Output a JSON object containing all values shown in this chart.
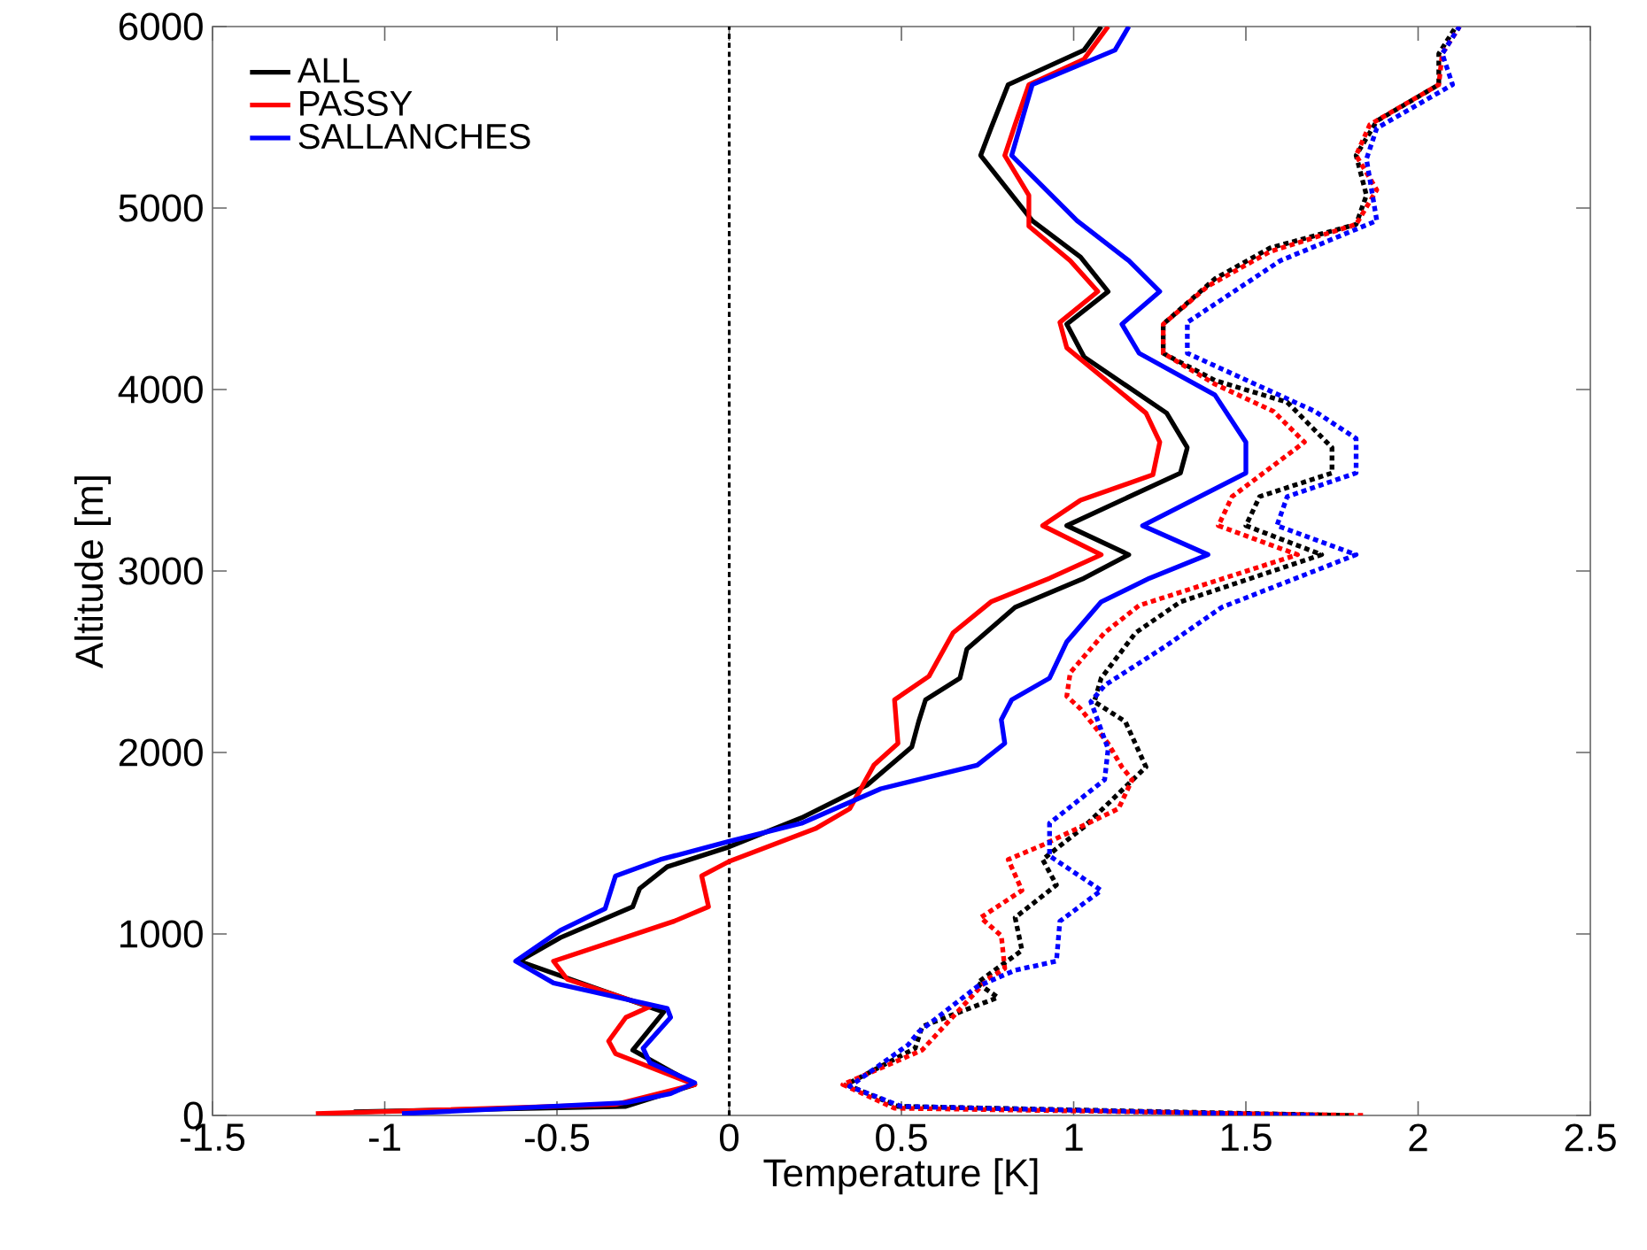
{
  "chart_data": {
    "type": "line",
    "xlabel": "Temperature [K]",
    "ylabel": "Altitude [m]",
    "xlim": [
      -1.5,
      2.5
    ],
    "ylim": [
      0,
      6000
    ],
    "xticks": [
      -1.5,
      -1,
      -0.5,
      0,
      0.5,
      1,
      1.5,
      2,
      2.5
    ],
    "yticks": [
      0,
      1000,
      2000,
      3000,
      4000,
      5000,
      6000
    ],
    "legend": "top left",
    "series": [
      {
        "name": "ALL",
        "color": "#000000",
        "line_style": "solid",
        "x": [
          -1.09,
          -0.3,
          -0.1,
          -0.28,
          -0.19,
          -0.61,
          -0.49,
          -0.28,
          -0.26,
          -0.18,
          0,
          0.21,
          0.4,
          0.53,
          0.55,
          0.57,
          0.67,
          0.69,
          0.83,
          1.03,
          1.16,
          0.98,
          1.31,
          1.33,
          1.27,
          1.03,
          0.98,
          1.1,
          1.02,
          0.88,
          0.73,
          0.76,
          0.81,
          1.03,
          1.08
        ],
        "values": [
          20,
          50,
          170,
          360,
          570,
          850,
          980,
          1150,
          1250,
          1370,
          1480,
          1640,
          1820,
          2030,
          2170,
          2290,
          2410,
          2570,
          2800,
          2960,
          3090,
          3250,
          3540,
          3680,
          3870,
          4180,
          4360,
          4540,
          4730,
          4930,
          5290,
          5440,
          5680,
          5870,
          6000
        ]
      },
      {
        "name": "PASSY",
        "color": "#ff0000",
        "line_style": "solid",
        "x": [
          -1.2,
          -0.33,
          -0.1,
          -0.33,
          -0.35,
          -0.3,
          -0.23,
          -0.47,
          -0.51,
          -0.16,
          -0.06,
          -0.08,
          0,
          0.25,
          0.35,
          0.42,
          0.49,
          0.48,
          0.58,
          0.65,
          0.76,
          0.93,
          1.08,
          0.91,
          1.02,
          1.23,
          1.25,
          1.21,
          0.98,
          0.96,
          1.07,
          0.99,
          0.87,
          0.87,
          0.8,
          0.83,
          0.87,
          1.03,
          1.1
        ],
        "values": [
          10,
          60,
          170,
          340,
          410,
          540,
          600,
          750,
          850,
          1070,
          1150,
          1320,
          1400,
          1580,
          1690,
          1930,
          2050,
          2290,
          2420,
          2660,
          2830,
          2960,
          3090,
          3250,
          3390,
          3530,
          3710,
          3870,
          4230,
          4370,
          4540,
          4710,
          4900,
          5070,
          5290,
          5460,
          5680,
          5820,
          6000
        ]
      },
      {
        "name": "SALLANCHES",
        "color": "#0000ff",
        "line_style": "solid",
        "x": [
          -0.95,
          -0.3,
          -0.17,
          -0.1,
          -0.23,
          -0.25,
          -0.17,
          -0.18,
          -0.51,
          -0.62,
          -0.49,
          -0.36,
          -0.33,
          -0.2,
          0,
          0.21,
          0.44,
          0.72,
          0.8,
          0.79,
          0.82,
          0.93,
          0.98,
          1.08,
          1.22,
          1.39,
          1.2,
          1.5,
          1.5,
          1.41,
          1.19,
          1.14,
          1.25,
          1.16,
          1.01,
          0.82,
          0.88,
          1.12,
          1.16
        ],
        "values": [
          10,
          70,
          120,
          180,
          290,
          370,
          540,
          590,
          730,
          850,
          1020,
          1140,
          1320,
          1410,
          1510,
          1610,
          1800,
          1930,
          2050,
          2180,
          2290,
          2410,
          2610,
          2830,
          2960,
          3090,
          3250,
          3540,
          3710,
          3970,
          4200,
          4360,
          4540,
          4710,
          4930,
          5290,
          5680,
          5870,
          6000
        ]
      },
      {
        "color": "#000000",
        "line_style": "dotted",
        "x": [
          1.8,
          0.49,
          0.34,
          0.54,
          0.56,
          0.78,
          0.72,
          0.85,
          0.83,
          0.95,
          0.91,
          1.03,
          1.21,
          1.15,
          1.06,
          1.08,
          1.18,
          1.31,
          1.72,
          1.5,
          1.54,
          1.75,
          1.75,
          1.62,
          1.41,
          1.26,
          1.26,
          1.41,
          1.57,
          1.82,
          1.85,
          1.82,
          1.88,
          2.06,
          2.06,
          2.11
        ],
        "values": [
          0,
          50,
          170,
          370,
          490,
          650,
          730,
          910,
          1090,
          1270,
          1410,
          1590,
          1920,
          2170,
          2280,
          2410,
          2660,
          2830,
          3090,
          3250,
          3410,
          3540,
          3680,
          3930,
          4050,
          4200,
          4360,
          4610,
          4780,
          4910,
          5070,
          5290,
          5480,
          5680,
          5850,
          6000
        ]
      },
      {
        "color": "#ff0000",
        "line_style": "dotted",
        "x": [
          1.84,
          0.48,
          0.33,
          0.56,
          0.75,
          0.8,
          0.79,
          0.73,
          0.85,
          0.81,
          0.91,
          1.13,
          1.17,
          1.14,
          1.1,
          1.02,
          0.98,
          0.99,
          1.09,
          1.19,
          1.65,
          1.42,
          1.46,
          1.67,
          1.58,
          1.41,
          1.26,
          1.26,
          1.39,
          1.57,
          1.82,
          1.88,
          1.82,
          1.86,
          2.06,
          2.07,
          2.12
        ],
        "values": [
          0,
          40,
          170,
          360,
          750,
          810,
          990,
          1090,
          1240,
          1410,
          1490,
          1690,
          1850,
          1920,
          2050,
          2240,
          2310,
          2440,
          2660,
          2810,
          3090,
          3250,
          3410,
          3710,
          3880,
          4030,
          4200,
          4360,
          4570,
          4760,
          4910,
          5100,
          5290,
          5460,
          5680,
          5850,
          6000
        ]
      },
      {
        "color": "#0000ff",
        "line_style": "dotted",
        "x": [
          1.7,
          0.5,
          0.35,
          0.52,
          0.55,
          0.72,
          0.83,
          0.95,
          0.96,
          1.08,
          0.93,
          0.93,
          1.09,
          1.1,
          1.05,
          1.09,
          1.27,
          1.43,
          1.82,
          1.59,
          1.62,
          1.82,
          1.82,
          1.7,
          1.33,
          1.33,
          1.6,
          1.88,
          1.85,
          1.88,
          2.1,
          2.07,
          2.12
        ],
        "values": [
          0,
          50,
          160,
          390,
          460,
          710,
          800,
          850,
          1070,
          1240,
          1430,
          1610,
          1850,
          2020,
          2280,
          2370,
          2590,
          2800,
          3090,
          3250,
          3410,
          3540,
          3730,
          3880,
          4200,
          4370,
          4710,
          4930,
          5270,
          5440,
          5680,
          5850,
          6000
        ]
      }
    ],
    "ref_lines": [
      {
        "axis": "x",
        "value": 0,
        "color": "#000000",
        "line_style": "dotted"
      }
    ]
  }
}
